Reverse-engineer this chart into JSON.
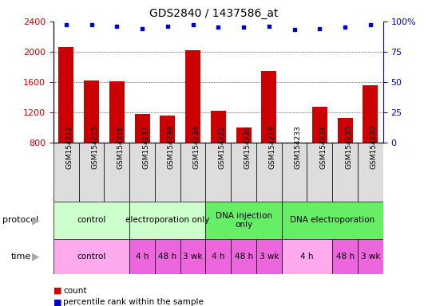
{
  "title": "GDS2840 / 1437586_at",
  "samples": [
    "GSM154212",
    "GSM154215",
    "GSM154216",
    "GSM154237",
    "GSM154238",
    "GSM154236",
    "GSM154222",
    "GSM154226",
    "GSM154218",
    "GSM154233",
    "GSM154234",
    "GSM154235",
    "GSM154230"
  ],
  "counts": [
    2060,
    1620,
    1610,
    1170,
    1150,
    2020,
    1220,
    1000,
    1750,
    800,
    1270,
    1120,
    1560
  ],
  "percentile_ranks": [
    97,
    97,
    96,
    94,
    96,
    97,
    95,
    95,
    96,
    93,
    94,
    95,
    97
  ],
  "bar_color": "#cc0000",
  "dot_color": "#0000cc",
  "ymin": 800,
  "ymax": 2400,
  "yticks": [
    800,
    1200,
    1600,
    2000,
    2400
  ],
  "y2min": 0,
  "y2max": 100,
  "y2ticks": [
    0,
    25,
    50,
    75,
    100
  ],
  "protocol_groups": [
    {
      "label": "control",
      "start": 0,
      "end": 3,
      "color": "#ccffcc"
    },
    {
      "label": "electroporation only",
      "start": 3,
      "end": 6,
      "color": "#ccffcc"
    },
    {
      "label": "DNA injection\nonly",
      "start": 6,
      "end": 9,
      "color": "#66ee66"
    },
    {
      "label": "DNA electroporation",
      "start": 9,
      "end": 13,
      "color": "#66ee66"
    }
  ],
  "time_groups": [
    {
      "label": "control",
      "start": 0,
      "end": 3,
      "color": "#ffaaee"
    },
    {
      "label": "4 h",
      "start": 3,
      "end": 4,
      "color": "#ee66dd"
    },
    {
      "label": "48 h",
      "start": 4,
      "end": 5,
      "color": "#ee66dd"
    },
    {
      "label": "3 wk",
      "start": 5,
      "end": 6,
      "color": "#ee66dd"
    },
    {
      "label": "4 h",
      "start": 6,
      "end": 7,
      "color": "#ee66dd"
    },
    {
      "label": "48 h",
      "start": 7,
      "end": 8,
      "color": "#ee66dd"
    },
    {
      "label": "3 wk",
      "start": 8,
      "end": 9,
      "color": "#ee66dd"
    },
    {
      "label": "4 h",
      "start": 9,
      "end": 11,
      "color": "#ffaaee"
    },
    {
      "label": "48 h",
      "start": 11,
      "end": 12,
      "color": "#ee66dd"
    },
    {
      "label": "3 wk",
      "start": 12,
      "end": 13,
      "color": "#ee66dd"
    }
  ],
  "sample_box_color": "#dddddd",
  "bg_color": "#ffffff",
  "tick_color_left": "#cc0000",
  "tick_color_right": "#0000cc",
  "title_fontsize": 10,
  "axis_fontsize": 8,
  "sample_fontsize": 6.5,
  "row_fontsize": 7.5
}
